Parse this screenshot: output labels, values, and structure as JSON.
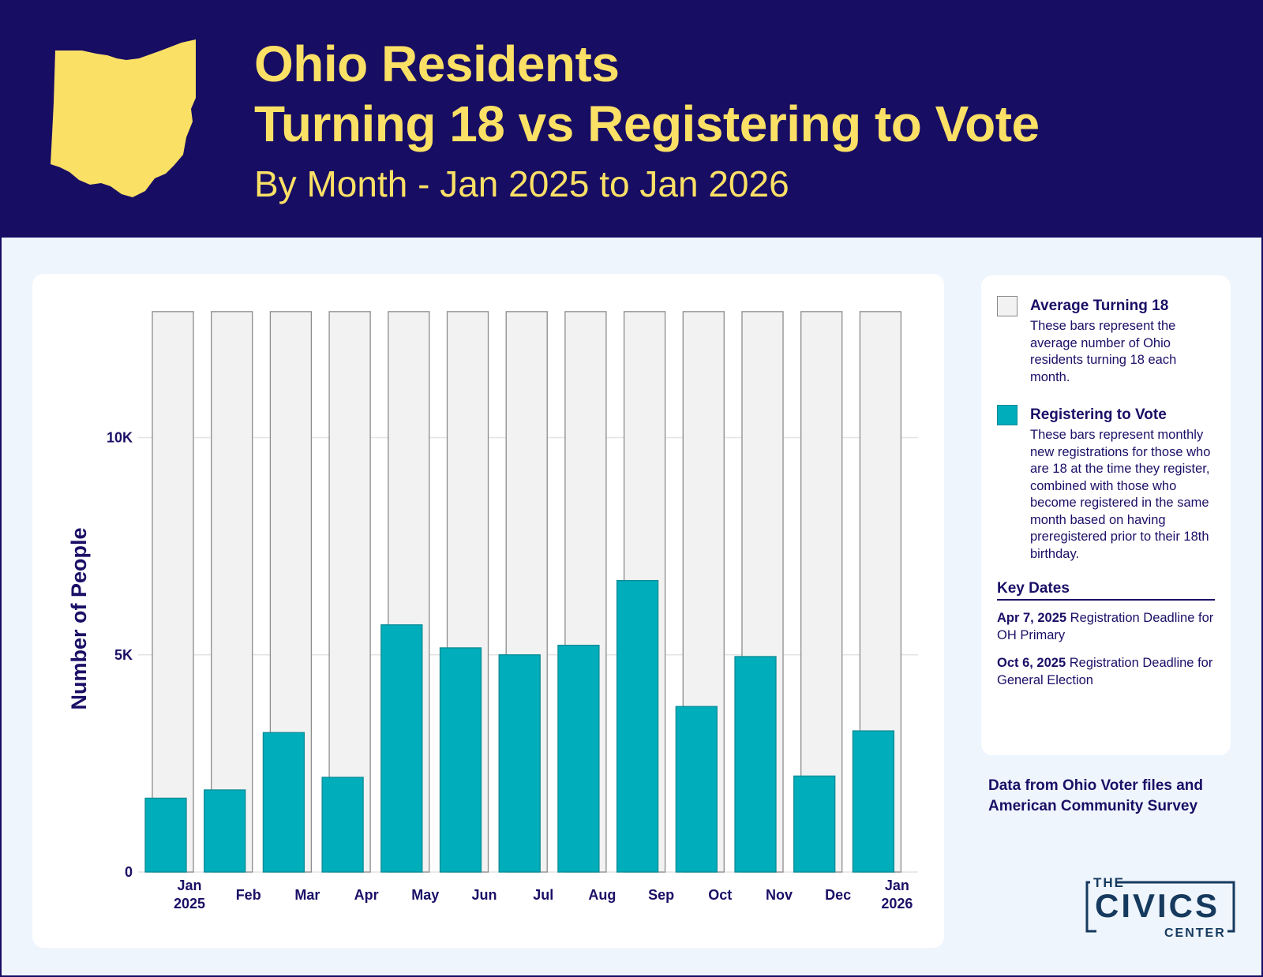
{
  "header": {
    "title_line1": "Ohio Residents",
    "title_line2": "Turning 18 vs Registering to Vote",
    "subtitle": "By Month - Jan 2025 to Jan 2026"
  },
  "colors": {
    "header_bg": "#170d63",
    "title": "#fbe066",
    "turning18": "#f2f2f2",
    "registering": "#00adbb",
    "text": "#1a0f66"
  },
  "chart_data": {
    "type": "bar",
    "ylabel": "Number of People",
    "ylim": [
      0,
      13000
    ],
    "yticks": [
      {
        "value": 0,
        "label": "0"
      },
      {
        "value": 5000,
        "label": "5K"
      },
      {
        "value": 10000,
        "label": "10K"
      }
    ],
    "grid": true,
    "categories": [
      [
        "Jan",
        "2025"
      ],
      [
        "Feb"
      ],
      [
        "Mar"
      ],
      [
        "Apr"
      ],
      [
        "May"
      ],
      [
        "Jun"
      ],
      [
        "Jul"
      ],
      [
        "Aug"
      ],
      [
        "Sep"
      ],
      [
        "Oct"
      ],
      [
        "Nov"
      ],
      [
        "Dec"
      ],
      [
        "Jan",
        "2026"
      ]
    ],
    "series": [
      {
        "name": "Average Turning 18",
        "color": "#f2f2f2",
        "values": [
          12900,
          12900,
          12900,
          12900,
          12900,
          12900,
          12900,
          12900,
          12900,
          12900,
          12900,
          12900,
          12900
        ]
      },
      {
        "name": "Registering to Vote",
        "color": "#00adbb",
        "values": [
          1700,
          1890,
          3210,
          2180,
          5690,
          5160,
          5000,
          5220,
          6710,
          3810,
          4960,
          2210,
          3250
        ]
      }
    ]
  },
  "legend": {
    "items": [
      {
        "title": "Average Turning 18",
        "desc": "These bars represent the average number of Ohio residents turning 18 each month."
      },
      {
        "title": "Registering to Vote",
        "desc": "These bars represent monthly new registrations for those who are 18 at the time they register, combined with those who become registered in the same month based on having preregistered prior to their 18th birthday."
      }
    ],
    "key_dates_title": "Key Dates",
    "key_dates": [
      {
        "date": "Apr 7, 2025",
        "text": " Registration Deadline for OH Primary"
      },
      {
        "date": "Oct 6, 2025",
        "text": " Registration Deadline for General Election"
      }
    ]
  },
  "source": "Data from Ohio Voter files and American Community Survey",
  "logo": {
    "line1": "THE",
    "line2": "CIVICS",
    "line3": "CENTER"
  }
}
